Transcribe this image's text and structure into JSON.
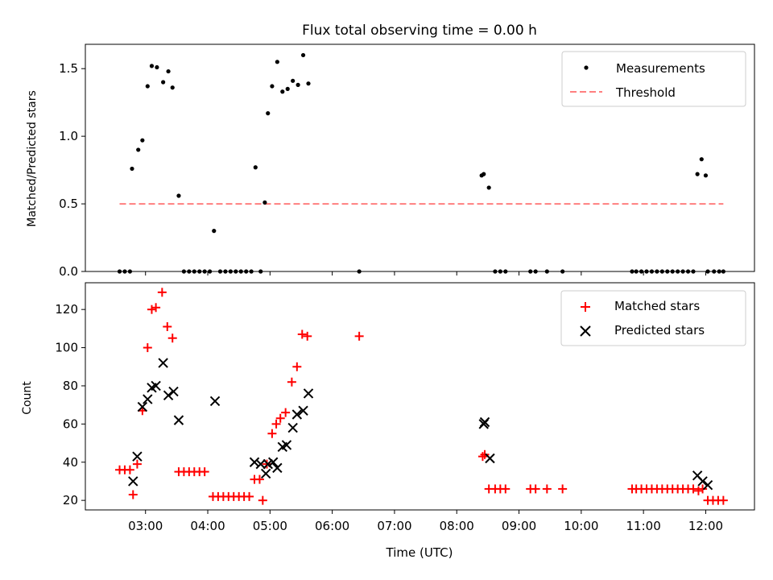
{
  "chart_data": [
    {
      "type": "scatter",
      "title": "Flux total observing time = 0.00 h",
      "ylabel": "Matched/Predicted stars",
      "ylim": [
        0,
        1.68
      ],
      "yticks": [
        0.0,
        0.5,
        1.0,
        1.5
      ],
      "ytick_labels": [
        "0.0",
        "0.5",
        "1.0",
        "1.5"
      ],
      "legend_position": "upper-right",
      "series": [
        {
          "name": "Measurements",
          "marker": "dot",
          "color": "#000000",
          "points": [
            [
              "02:35",
              0.0
            ],
            [
              "02:40",
              0.0
            ],
            [
              "02:45",
              0.0
            ],
            [
              "02:47",
              0.76
            ],
            [
              "02:53",
              0.9
            ],
            [
              "02:57",
              0.97
            ],
            [
              "03:02",
              1.37
            ],
            [
              "03:06",
              1.52
            ],
            [
              "03:11",
              1.51
            ],
            [
              "03:17",
              1.4
            ],
            [
              "03:22",
              1.48
            ],
            [
              "03:26",
              1.36
            ],
            [
              "03:32",
              0.56
            ],
            [
              "03:37",
              0.0
            ],
            [
              "03:42",
              0.0
            ],
            [
              "03:47",
              0.0
            ],
            [
              "03:52",
              0.0
            ],
            [
              "03:57",
              0.0
            ],
            [
              "04:02",
              0.0
            ],
            [
              "04:06",
              0.3
            ],
            [
              "04:12",
              0.0
            ],
            [
              "04:17",
              0.0
            ],
            [
              "04:22",
              0.0
            ],
            [
              "04:27",
              0.0
            ],
            [
              "04:32",
              0.0
            ],
            [
              "04:37",
              0.0
            ],
            [
              "04:42",
              0.0
            ],
            [
              "04:46",
              0.77
            ],
            [
              "04:51",
              0.0
            ],
            [
              "04:55",
              0.51
            ],
            [
              "04:58",
              1.17
            ],
            [
              "05:02",
              1.37
            ],
            [
              "05:07",
              1.55
            ],
            [
              "05:12",
              1.33
            ],
            [
              "05:17",
              1.35
            ],
            [
              "05:22",
              1.41
            ],
            [
              "05:27",
              1.38
            ],
            [
              "05:32",
              1.6
            ],
            [
              "05:37",
              1.39
            ],
            [
              "06:26",
              0.0
            ],
            [
              "08:24",
              0.71
            ],
            [
              "08:26",
              0.72
            ],
            [
              "08:31",
              0.62
            ],
            [
              "08:37",
              0.0
            ],
            [
              "08:42",
              0.0
            ],
            [
              "08:47",
              0.0
            ],
            [
              "09:11",
              0.0
            ],
            [
              "09:16",
              0.0
            ],
            [
              "09:27",
              0.0
            ],
            [
              "09:42",
              0.0
            ],
            [
              "10:49",
              0.0
            ],
            [
              "10:53",
              0.0
            ],
            [
              "10:58",
              0.0
            ],
            [
              "11:03",
              0.0
            ],
            [
              "11:08",
              0.0
            ],
            [
              "11:13",
              0.0
            ],
            [
              "11:18",
              0.0
            ],
            [
              "11:23",
              0.0
            ],
            [
              "11:28",
              0.0
            ],
            [
              "11:33",
              0.0
            ],
            [
              "11:38",
              0.0
            ],
            [
              "11:43",
              0.0
            ],
            [
              "11:48",
              0.0
            ],
            [
              "11:52",
              0.72
            ],
            [
              "11:56",
              0.83
            ],
            [
              "12:00",
              0.71
            ],
            [
              "12:02",
              0.0
            ],
            [
              "12:08",
              0.0
            ],
            [
              "12:13",
              0.0
            ],
            [
              "12:17",
              0.0
            ]
          ]
        },
        {
          "name": "Threshold",
          "marker": "dashed-line",
          "color": "#ff7f7f",
          "points": [
            [
              "02:35",
              0.5
            ],
            [
              "12:17",
              0.5
            ]
          ]
        }
      ]
    },
    {
      "type": "scatter",
      "xlabel": "Time (UTC)",
      "ylabel": "Count",
      "ylim": [
        15,
        134
      ],
      "yticks": [
        20,
        40,
        60,
        80,
        100,
        120
      ],
      "ytick_labels": [
        "20",
        "40",
        "60",
        "80",
        "100",
        "120"
      ],
      "xlim": [
        "02:02",
        "12:47"
      ],
      "xticks": [
        "03:00",
        "04:00",
        "05:00",
        "06:00",
        "07:00",
        "08:00",
        "09:00",
        "10:00",
        "11:00",
        "12:00"
      ],
      "xtick_labels": [
        "03:00",
        "04:00",
        "05:00",
        "06:00",
        "07:00",
        "08:00",
        "09:00",
        "10:00",
        "11:00",
        "12:00"
      ],
      "legend_position": "upper-right",
      "series": [
        {
          "name": "Matched stars",
          "marker": "plus",
          "color": "#ff0000",
          "points": [
            [
              "02:35",
              36
            ],
            [
              "02:40",
              36
            ],
            [
              "02:45",
              36
            ],
            [
              "02:48",
              23
            ],
            [
              "02:52",
              39
            ],
            [
              "02:57",
              67
            ],
            [
              "03:02",
              100
            ],
            [
              "03:06",
              120
            ],
            [
              "03:10",
              121
            ],
            [
              "03:16",
              129
            ],
            [
              "03:21",
              111
            ],
            [
              "03:26",
              105
            ],
            [
              "03:32",
              35
            ],
            [
              "03:37",
              35
            ],
            [
              "03:42",
              35
            ],
            [
              "03:47",
              35
            ],
            [
              "03:52",
              35
            ],
            [
              "03:57",
              35
            ],
            [
              "04:05",
              22
            ],
            [
              "04:10",
              22
            ],
            [
              "04:15",
              22
            ],
            [
              "04:20",
              22
            ],
            [
              "04:25",
              22
            ],
            [
              "04:30",
              22
            ],
            [
              "04:35",
              22
            ],
            [
              "04:40",
              22
            ],
            [
              "04:45",
              31
            ],
            [
              "04:50",
              31
            ],
            [
              "04:53",
              20
            ],
            [
              "04:57",
              39
            ],
            [
              "05:02",
              55
            ],
            [
              "05:06",
              60
            ],
            [
              "05:10",
              63
            ],
            [
              "05:15",
              66
            ],
            [
              "05:21",
              82
            ],
            [
              "05:26",
              90
            ],
            [
              "05:31",
              107
            ],
            [
              "05:36",
              106
            ],
            [
              "06:26",
              106
            ],
            [
              "08:25",
              43
            ],
            [
              "08:27",
              44
            ],
            [
              "08:31",
              26
            ],
            [
              "08:37",
              26
            ],
            [
              "08:42",
              26
            ],
            [
              "08:47",
              26
            ],
            [
              "09:11",
              26
            ],
            [
              "09:16",
              26
            ],
            [
              "09:27",
              26
            ],
            [
              "09:42",
              26
            ],
            [
              "10:49",
              26
            ],
            [
              "10:53",
              26
            ],
            [
              "10:58",
              26
            ],
            [
              "11:03",
              26
            ],
            [
              "11:08",
              26
            ],
            [
              "11:13",
              26
            ],
            [
              "11:18",
              26
            ],
            [
              "11:23",
              26
            ],
            [
              "11:28",
              26
            ],
            [
              "11:33",
              26
            ],
            [
              "11:38",
              26
            ],
            [
              "11:43",
              26
            ],
            [
              "11:48",
              26
            ],
            [
              "11:53",
              25
            ],
            [
              "11:57",
              26
            ],
            [
              "12:02",
              20
            ],
            [
              "12:07",
              20
            ],
            [
              "12:12",
              20
            ],
            [
              "12:17",
              20
            ]
          ]
        },
        {
          "name": "Predicted stars",
          "marker": "cross",
          "color": "#000000",
          "points": [
            [
              "02:48",
              30
            ],
            [
              "02:52",
              43
            ],
            [
              "02:57",
              69
            ],
            [
              "03:02",
              73
            ],
            [
              "03:06",
              79
            ],
            [
              "03:10",
              80
            ],
            [
              "03:17",
              92
            ],
            [
              "03:22",
              75
            ],
            [
              "03:27",
              77
            ],
            [
              "03:32",
              62
            ],
            [
              "04:07",
              72
            ],
            [
              "04:45",
              40
            ],
            [
              "04:51",
              39
            ],
            [
              "04:56",
              34
            ],
            [
              "04:58",
              39
            ],
            [
              "05:03",
              40
            ],
            [
              "05:07",
              37
            ],
            [
              "05:12",
              48
            ],
            [
              "05:16",
              49
            ],
            [
              "05:22",
              58
            ],
            [
              "05:26",
              65
            ],
            [
              "05:32",
              67
            ],
            [
              "05:37",
              76
            ],
            [
              "08:26",
              60
            ],
            [
              "08:27",
              61
            ],
            [
              "08:32",
              42
            ],
            [
              "11:52",
              33
            ],
            [
              "11:57",
              30
            ],
            [
              "12:02",
              28
            ]
          ]
        }
      ]
    }
  ]
}
